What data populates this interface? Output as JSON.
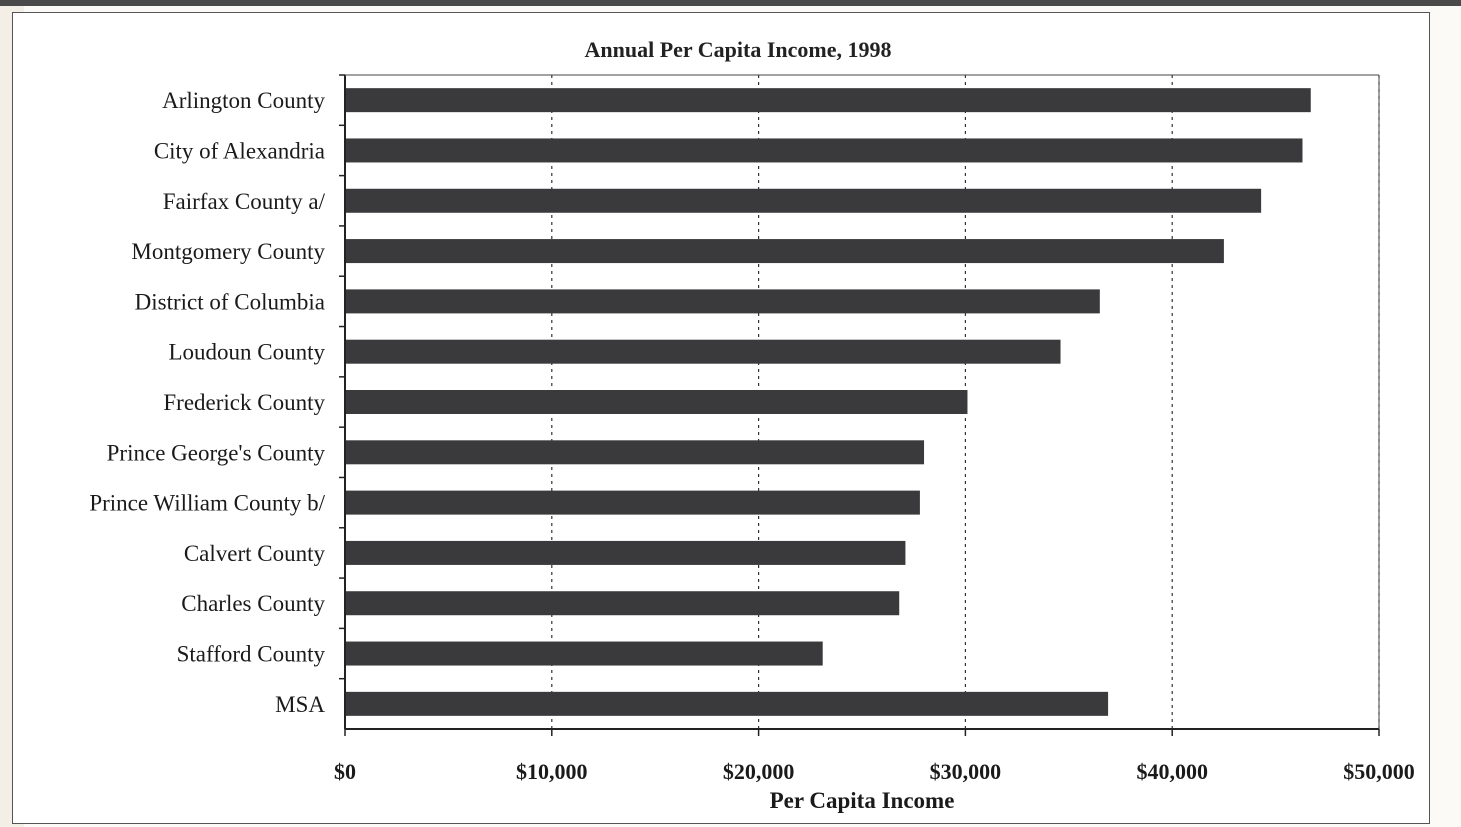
{
  "chart_data": {
    "type": "bar",
    "orientation": "horizontal",
    "title": "Annual Per Capita Income, 1998",
    "xlabel": "Per Capita Income",
    "ylabel": "",
    "categories": [
      "Arlington County",
      "City of Alexandria",
      "Fairfax County a/",
      "Montgomery County",
      "District of Columbia",
      "Loudoun County",
      "Frederick County",
      "Prince George's County",
      "Prince William County b/",
      "Calvert County",
      "Charles County",
      "Stafford County",
      "MSA"
    ],
    "values": [
      46700,
      46300,
      44300,
      42500,
      36500,
      34600,
      30100,
      28000,
      27800,
      27100,
      26800,
      23100,
      36900
    ],
    "xlim": [
      0,
      50000
    ],
    "x_ticks": [
      0,
      10000,
      20000,
      30000,
      40000,
      50000
    ],
    "x_tick_labels": [
      "$0",
      "$10,000",
      "$20,000",
      "$30,000",
      "$40,000",
      "$50,000"
    ],
    "grid": "vertical dashed",
    "legend": "none",
    "bar_color": "#3a3a3c"
  }
}
